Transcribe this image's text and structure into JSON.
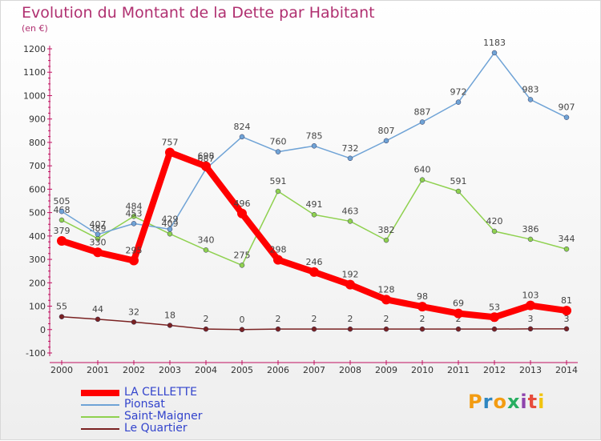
{
  "title": "Evolution du Montant de la Dette par Habitant",
  "unit_label": "(en €)",
  "brand": {
    "text": "Proxiti",
    "colors": [
      "#f39c12",
      "#2e86c1",
      "#f39c12",
      "#27ae60",
      "#8e44ad",
      "#e74c3c",
      "#f1c40f"
    ]
  },
  "chart_data": {
    "type": "line",
    "title": "Evolution du Montant de la Dette par Habitant",
    "ylabel": "(en €)",
    "x": [
      2000,
      2001,
      2002,
      2003,
      2004,
      2005,
      2006,
      2007,
      2008,
      2009,
      2010,
      2011,
      2012,
      2013,
      2014
    ],
    "ylim": [
      -100,
      1200
    ],
    "yticks": [
      -100,
      0,
      100,
      200,
      300,
      400,
      500,
      600,
      700,
      800,
      900,
      1000,
      1100,
      1200
    ],
    "grid": false,
    "legend_position": "bottom-left",
    "series": [
      {
        "name": "LA CELLETTE",
        "color": "#ff0000",
        "width": 8,
        "values": [
          379,
          330,
          295,
          757,
          698,
          496,
          298,
          246,
          192,
          128,
          98,
          69,
          53,
          103,
          81
        ]
      },
      {
        "name": "Pionsat",
        "color": "#6fa3d6",
        "width": 1.5,
        "values": [
          505,
          407,
          453,
          429,
          687,
          824,
          760,
          785,
          732,
          807,
          887,
          972,
          1183,
          983,
          907
        ]
      },
      {
        "name": "Saint-Maigner",
        "color": "#8fd14f",
        "width": 1.5,
        "values": [
          468,
          389,
          484,
          409,
          340,
          275,
          591,
          491,
          463,
          382,
          640,
          591,
          420,
          386,
          344
        ]
      },
      {
        "name": "Le Quartier",
        "color": "#7a2222",
        "width": 1.5,
        "values": [
          55,
          44,
          32,
          18,
          2,
          0,
          2,
          2,
          2,
          2,
          2,
          2,
          2,
          3,
          3
        ]
      }
    ]
  }
}
